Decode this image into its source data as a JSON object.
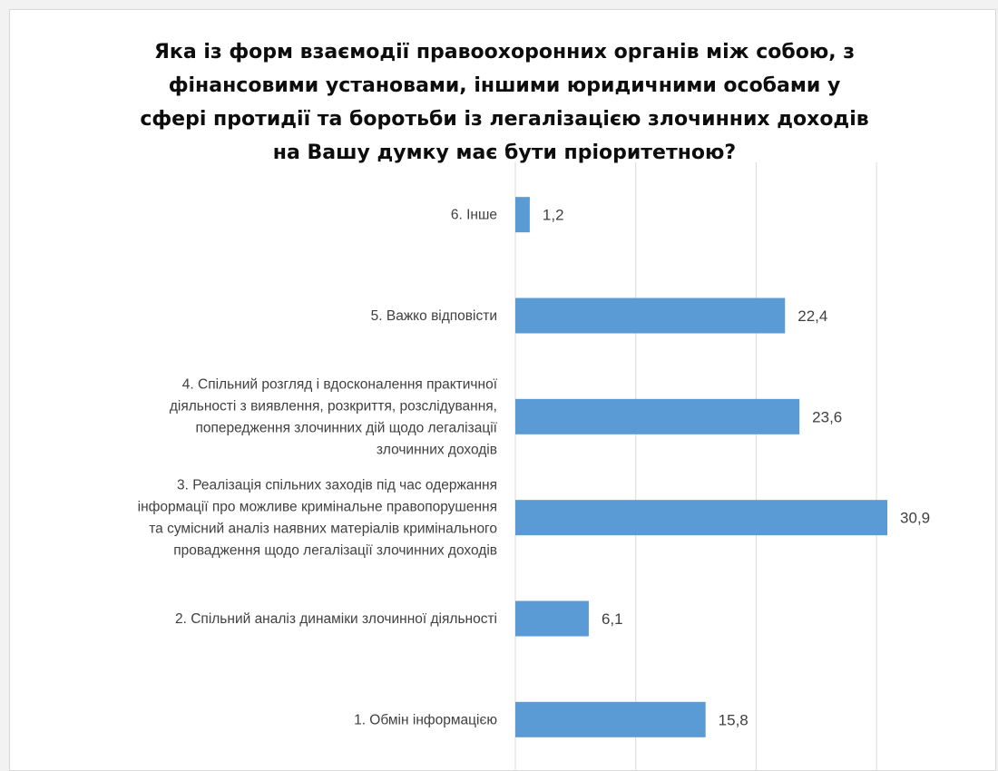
{
  "chart_data": {
    "type": "bar",
    "orientation": "horizontal",
    "title_lines": [
      "Яка із форм взаємодії правоохоронних органів між собою, з",
      "фінансовими установами, іншими юридичними особами у",
      "сфері протидії та боротьби із легалізацією злочинних доходів",
      "на Вашу думку має бути пріоритетною?"
    ],
    "categories": [
      [
        "6. Інше"
      ],
      [
        "5. Важко відповісти"
      ],
      [
        "4. Спільний розгляд і вдосконалення практичної",
        "діяльності з виявлення, розкриття, розслідування,",
        "попередження злочинних дій щодо легалізації",
        "злочинних доходів"
      ],
      [
        "3. Реалізація спільних заходів під час одержання",
        "інформації про можливе кримінальне правопорушення",
        "та сумісний аналіз наявних матеріалів кримінального",
        "провадження щодо легалізації злочинних доходів"
      ],
      [
        "2. Спільний аналіз динаміки злочинної діяльності"
      ],
      [
        "1. Обмін інформацією"
      ]
    ],
    "values": [
      1.2,
      22.4,
      23.6,
      30.9,
      6.1,
      15.8
    ],
    "data_labels": [
      "1,2",
      "22,4",
      "23,6",
      "30,9",
      "6,1",
      "15,8"
    ],
    "xlim": [
      0,
      40
    ],
    "grid": true,
    "bar_color": "#5b9bd5"
  }
}
